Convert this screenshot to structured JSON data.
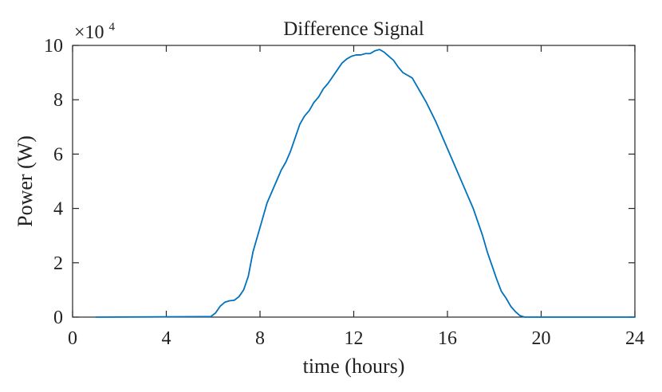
{
  "chart_data": {
    "type": "line",
    "title": "Difference Signal",
    "xlabel": "time (hours)",
    "ylabel": "Power (W)",
    "y_exponent_prefix": "×10",
    "y_exponent": "4",
    "xlim": [
      0,
      24
    ],
    "ylim": [
      0,
      10
    ],
    "x_ticks": [
      "0",
      "4",
      "8",
      "12",
      "16",
      "20",
      "24"
    ],
    "y_ticks": [
      "0",
      "2",
      "4",
      "6",
      "8",
      "10"
    ],
    "grid": false,
    "series": [
      {
        "color": "#0072BD",
        "x": [
          1.0,
          5.9,
          6.1,
          6.3,
          6.5,
          6.7,
          6.9,
          7.1,
          7.3,
          7.5,
          7.7,
          7.9,
          8.1,
          8.3,
          8.5,
          8.7,
          8.9,
          9.1,
          9.3,
          9.5,
          9.7,
          9.9,
          10.1,
          10.3,
          10.5,
          10.7,
          10.9,
          11.1,
          11.3,
          11.5,
          11.7,
          11.9,
          12.1,
          12.3,
          12.5,
          12.7,
          12.9,
          13.1,
          13.3,
          13.5,
          13.7,
          13.9,
          14.1,
          14.3,
          14.5,
          14.7,
          14.9,
          15.1,
          15.3,
          15.5,
          15.7,
          15.9,
          16.1,
          16.3,
          16.5,
          16.7,
          16.9,
          17.1,
          17.3,
          17.5,
          17.7,
          17.9,
          18.1,
          18.3,
          18.5,
          18.7,
          18.9,
          19.1,
          19.3,
          19.5,
          19.7,
          19.9,
          20.1,
          24.0
        ],
        "y": [
          0.0,
          0.02,
          0.15,
          0.4,
          0.55,
          0.6,
          0.62,
          0.75,
          1.0,
          1.5,
          2.4,
          3.0,
          3.6,
          4.2,
          4.6,
          5.0,
          5.4,
          5.7,
          6.1,
          6.6,
          7.1,
          7.4,
          7.6,
          7.9,
          8.1,
          8.4,
          8.6,
          8.85,
          9.1,
          9.35,
          9.5,
          9.6,
          9.65,
          9.65,
          9.7,
          9.7,
          9.8,
          9.85,
          9.75,
          9.6,
          9.45,
          9.2,
          9.0,
          8.9,
          8.8,
          8.5,
          8.2,
          7.9,
          7.55,
          7.2,
          6.8,
          6.4,
          6.0,
          5.6,
          5.2,
          4.8,
          4.4,
          4.0,
          3.5,
          3.0,
          2.4,
          1.9,
          1.4,
          0.95,
          0.7,
          0.4,
          0.2,
          0.05,
          0.0,
          0.0,
          0.0,
          0.0,
          0.0,
          0.0
        ]
      }
    ]
  }
}
